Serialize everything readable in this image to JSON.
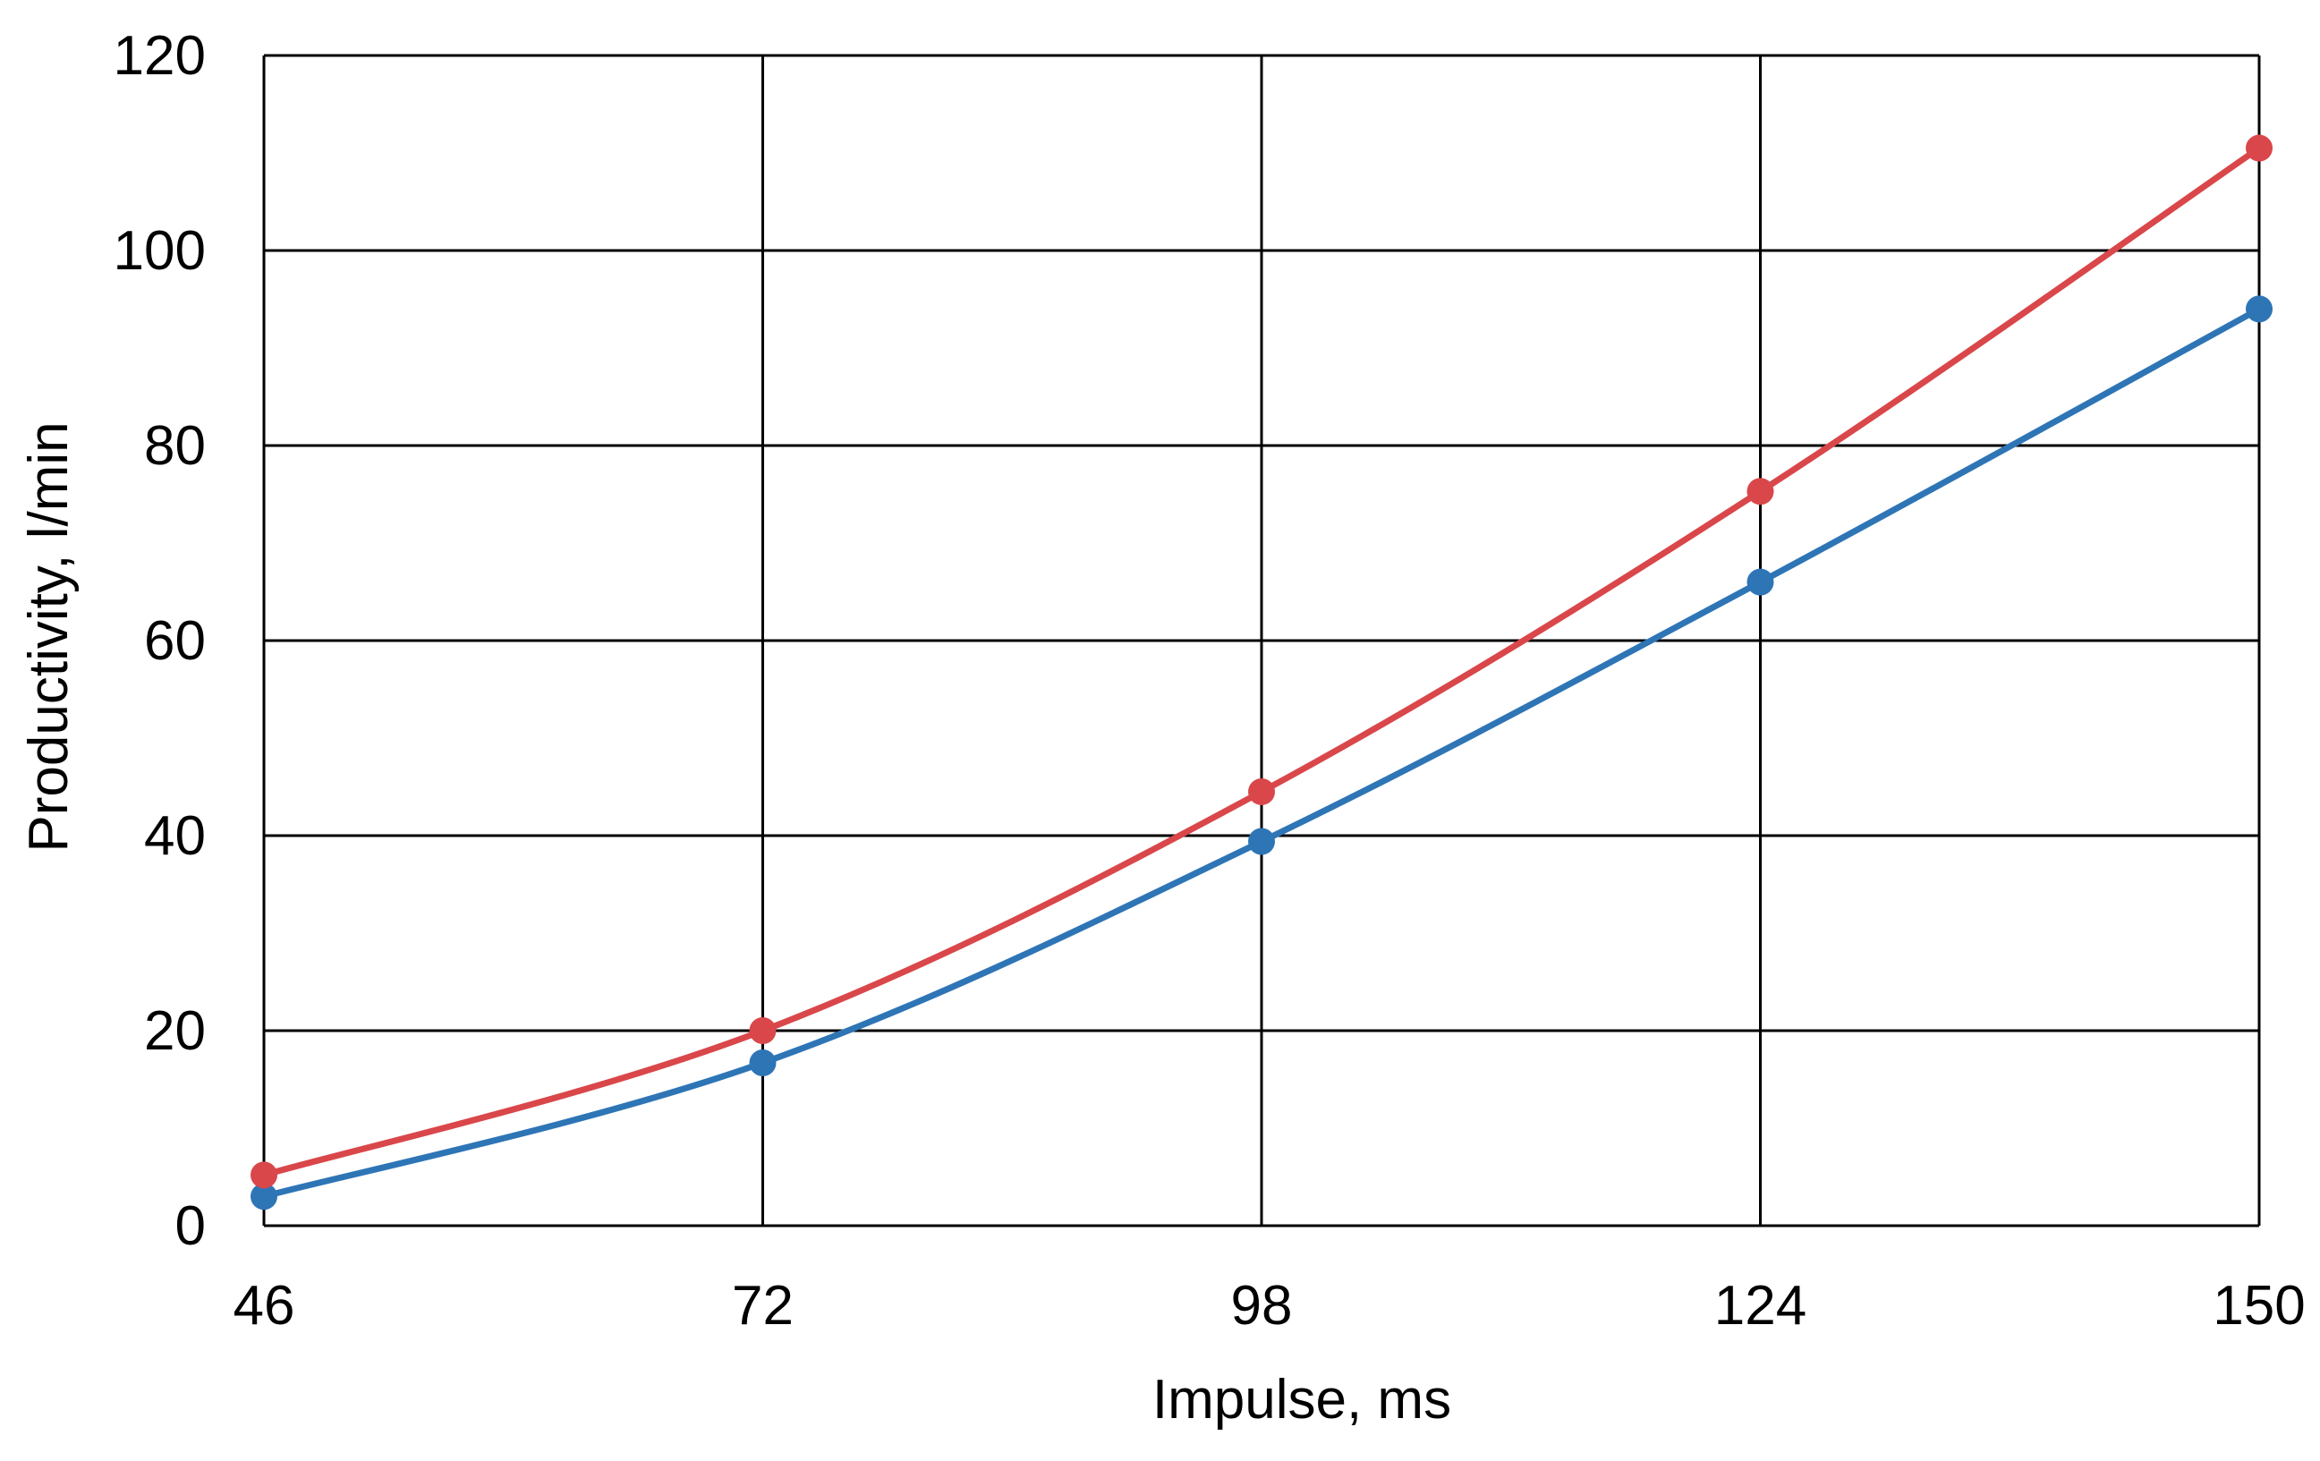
{
  "chart_data": {
    "type": "line",
    "title": "",
    "xlabel": "Impulse, ms",
    "ylabel": "Productivity, l/min",
    "x": [
      46,
      72,
      98,
      124,
      150
    ],
    "x_tick_labels": [
      "46",
      "72",
      "98",
      "124",
      "150"
    ],
    "y_tick_labels": [
      "0",
      "20",
      "40",
      "60",
      "80",
      "100",
      "120"
    ],
    "y_ticks": [
      0,
      20,
      40,
      60,
      80,
      100,
      120
    ],
    "xlim": [
      46,
      150
    ],
    "ylim": [
      0,
      120
    ],
    "grid": true,
    "legend": "none",
    "series": [
      {
        "color": "#2E75B6",
        "values": [
          3,
          16.7,
          39.4,
          66,
          94
        ]
      },
      {
        "color": "#D9474A",
        "values": [
          5.2,
          20,
          44.5,
          75.3,
          110.5
        ]
      }
    ]
  }
}
